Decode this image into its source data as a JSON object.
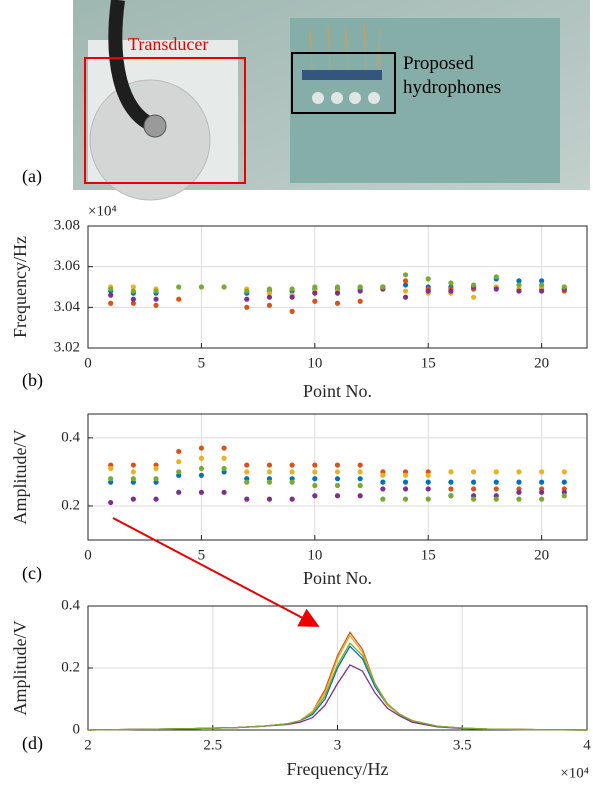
{
  "photo": {
    "panel_label": "(a)",
    "transducer_label": "Transducer",
    "hydrophone_label": "Proposed hydrophones"
  },
  "chart_data": [
    {
      "type": "scatter",
      "panel_label": "(b)",
      "xlabel": "Point No.",
      "ylabel": "Frequency/Hz",
      "y_multiplier": "×10⁴",
      "x": [
        1,
        2,
        3,
        4,
        5,
        6,
        7,
        8,
        9,
        10,
        11,
        12,
        13,
        14,
        15,
        16,
        17,
        18,
        19,
        20,
        21
      ],
      "xlim": [
        0,
        22
      ],
      "xticks": [
        0,
        5,
        10,
        15,
        20
      ],
      "ylim": [
        3.02,
        3.08
      ],
      "yticks": [
        3.02,
        3.04,
        3.06,
        3.08
      ],
      "grid": true,
      "series": [
        {
          "color": "#0072BD",
          "values": [
            3.048,
            3.047,
            3.047,
            null,
            null,
            null,
            3.047,
            3.048,
            3.048,
            3.049,
            3.049,
            3.049,
            3.05,
            3.051,
            3.05,
            3.05,
            3.049,
            3.054,
            3.053,
            3.053,
            3.049
          ]
        },
        {
          "color": "#D95319",
          "values": [
            3.042,
            3.042,
            3.041,
            3.044,
            null,
            null,
            3.04,
            3.041,
            3.038,
            3.043,
            3.042,
            3.043,
            3.05,
            3.053,
            3.049,
            3.049,
            3.049,
            3.05,
            3.049,
            3.049,
            3.048
          ]
        },
        {
          "color": "#EDB120",
          "values": [
            3.05,
            3.05,
            3.049,
            null,
            null,
            null,
            3.049,
            3.047,
            3.046,
            3.048,
            3.048,
            3.05,
            3.049,
            3.048,
            3.047,
            3.047,
            3.045,
            3.05,
            3.049,
            3.05,
            3.05
          ]
        },
        {
          "color": "#7E2F8E",
          "values": [
            3.046,
            3.044,
            3.044,
            null,
            null,
            null,
            3.044,
            3.045,
            3.045,
            3.047,
            3.047,
            3.048,
            3.049,
            3.045,
            3.048,
            3.048,
            3.05,
            3.049,
            3.048,
            3.048,
            3.049
          ]
        },
        {
          "color": "#77AC30",
          "values": [
            3.049,
            3.048,
            3.048,
            3.05,
            3.05,
            3.05,
            3.048,
            3.049,
            3.049,
            3.05,
            3.05,
            3.05,
            3.05,
            3.056,
            3.054,
            3.052,
            3.051,
            3.055,
            3.051,
            3.051,
            3.05
          ]
        }
      ]
    },
    {
      "type": "scatter",
      "panel_label": "(c)",
      "xlabel": "Point No.",
      "ylabel": "Amplitude/V",
      "x": [
        1,
        2,
        3,
        4,
        5,
        6,
        7,
        8,
        9,
        10,
        11,
        12,
        13,
        14,
        15,
        16,
        17,
        18,
        19,
        20,
        21
      ],
      "xlim": [
        0,
        22
      ],
      "xticks": [
        0,
        5,
        10,
        15,
        20
      ],
      "ylim": [
        0.1,
        0.47
      ],
      "yticks": [
        0.2,
        0.4
      ],
      "grid": true,
      "series": [
        {
          "color": "#0072BD",
          "values": [
            0.27,
            0.27,
            0.27,
            0.29,
            0.29,
            0.3,
            0.28,
            0.28,
            0.28,
            0.28,
            0.28,
            0.28,
            0.27,
            0.27,
            0.27,
            0.27,
            0.27,
            0.27,
            0.27,
            0.27,
            0.27
          ]
        },
        {
          "color": "#D95319",
          "values": [
            0.32,
            0.32,
            0.32,
            0.36,
            0.37,
            0.37,
            0.32,
            0.32,
            0.32,
            0.32,
            0.32,
            0.32,
            0.3,
            0.3,
            0.3,
            0.25,
            0.25,
            0.25,
            0.25,
            0.25,
            0.25
          ]
        },
        {
          "color": "#EDB120",
          "values": [
            0.31,
            0.3,
            0.31,
            0.33,
            0.34,
            0.34,
            0.3,
            0.3,
            0.3,
            0.3,
            0.3,
            0.3,
            0.29,
            0.29,
            0.29,
            0.3,
            0.3,
            0.3,
            0.3,
            0.3,
            0.3
          ]
        },
        {
          "color": "#7E2F8E",
          "values": [
            0.21,
            0.22,
            0.22,
            0.24,
            0.24,
            0.24,
            0.22,
            0.22,
            0.22,
            0.23,
            0.23,
            0.23,
            0.25,
            0.25,
            0.25,
            0.23,
            0.23,
            0.23,
            0.24,
            0.24,
            0.24
          ]
        },
        {
          "color": "#77AC30",
          "values": [
            0.28,
            0.28,
            0.28,
            0.3,
            0.31,
            0.31,
            0.27,
            0.27,
            0.27,
            0.26,
            0.26,
            0.26,
            0.22,
            0.22,
            0.22,
            0.23,
            0.22,
            0.22,
            0.22,
            0.22,
            0.23
          ]
        }
      ]
    },
    {
      "type": "line",
      "panel_label": "(d)",
      "xlabel": "Frequency/Hz",
      "ylabel": "Amplitude/V",
      "x_multiplier": "×10⁴",
      "x": [
        2.0,
        2.2,
        2.4,
        2.6,
        2.7,
        2.8,
        2.85,
        2.9,
        2.95,
        3.0,
        3.05,
        3.1,
        3.15,
        3.2,
        3.25,
        3.3,
        3.4,
        3.5,
        3.6,
        3.8,
        4.0
      ],
      "xlim": [
        2,
        4
      ],
      "xticks": [
        2,
        2.5,
        3,
        3.5,
        4
      ],
      "ylim": [
        0,
        0.4
      ],
      "yticks": [
        0,
        0.2,
        0.4
      ],
      "grid": true,
      "series": [
        {
          "color": "#0072BD",
          "values": [
            0,
            0.002,
            0.004,
            0.008,
            0.012,
            0.02,
            0.03,
            0.05,
            0.1,
            0.2,
            0.27,
            0.23,
            0.14,
            0.08,
            0.05,
            0.03,
            0.012,
            0.006,
            0.003,
            0.001,
            0
          ]
        },
        {
          "color": "#D95319",
          "values": [
            0,
            0.002,
            0.004,
            0.008,
            0.012,
            0.02,
            0.03,
            0.06,
            0.13,
            0.24,
            0.315,
            0.26,
            0.15,
            0.08,
            0.05,
            0.03,
            0.012,
            0.006,
            0.003,
            0.001,
            0
          ]
        },
        {
          "color": "#EDB120",
          "values": [
            0,
            0.002,
            0.004,
            0.008,
            0.012,
            0.02,
            0.03,
            0.06,
            0.12,
            0.23,
            0.305,
            0.25,
            0.15,
            0.08,
            0.05,
            0.03,
            0.012,
            0.006,
            0.003,
            0.001,
            0
          ]
        },
        {
          "color": "#7E2F8E",
          "values": [
            0,
            0.002,
            0.004,
            0.008,
            0.012,
            0.018,
            0.025,
            0.04,
            0.08,
            0.15,
            0.21,
            0.19,
            0.12,
            0.07,
            0.045,
            0.025,
            0.01,
            0.005,
            0.002,
            0.001,
            0
          ]
        },
        {
          "color": "#77AC30",
          "values": [
            0,
            0.002,
            0.004,
            0.008,
            0.012,
            0.02,
            0.03,
            0.055,
            0.11,
            0.21,
            0.28,
            0.24,
            0.15,
            0.085,
            0.05,
            0.03,
            0.012,
            0.006,
            0.003,
            0.001,
            0
          ]
        }
      ]
    }
  ]
}
